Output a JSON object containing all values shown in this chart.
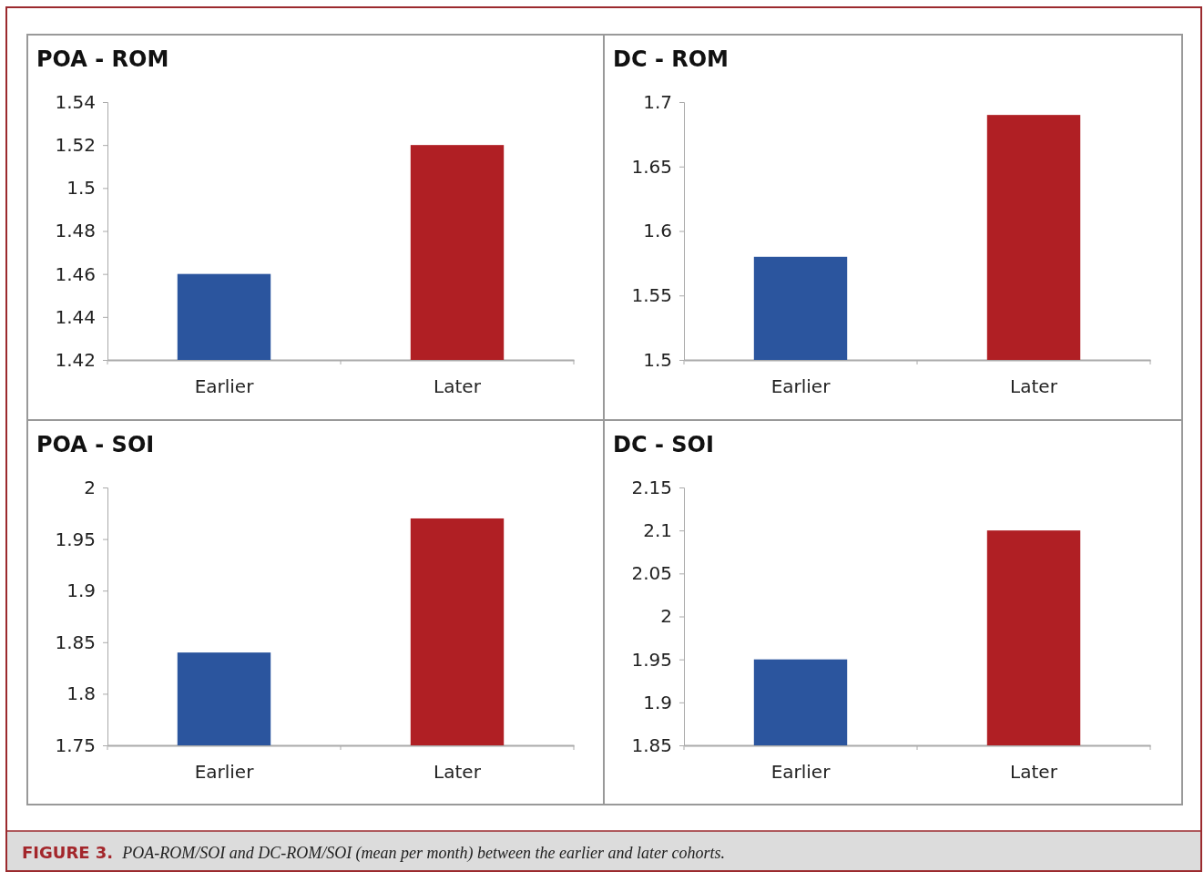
{
  "chart_data": [
    {
      "type": "bar",
      "title": "POA - ROM",
      "categories": [
        "Earlier",
        "Later"
      ],
      "values": [
        1.46,
        1.52
      ],
      "colors": [
        "#2b559e",
        "#b01f24"
      ],
      "ylim": [
        1.42,
        1.54
      ],
      "yticks": [
        1.42,
        1.44,
        1.46,
        1.48,
        1.5,
        1.52,
        1.54
      ]
    },
    {
      "type": "bar",
      "title": "DC - ROM",
      "categories": [
        "Earlier",
        "Later"
      ],
      "values": [
        1.58,
        1.69
      ],
      "colors": [
        "#2b559e",
        "#b01f24"
      ],
      "ylim": [
        1.5,
        1.7
      ],
      "yticks": [
        1.5,
        1.55,
        1.6,
        1.65,
        1.7
      ]
    },
    {
      "type": "bar",
      "title": "POA - SOI",
      "categories": [
        "Earlier",
        "Later"
      ],
      "values": [
        1.84,
        1.97
      ],
      "colors": [
        "#2b559e",
        "#b01f24"
      ],
      "ylim": [
        1.75,
        2
      ],
      "yticks": [
        1.75,
        1.8,
        1.85,
        1.9,
        1.95,
        2
      ]
    },
    {
      "type": "bar",
      "title": "DC - SOI",
      "categories": [
        "Earlier",
        "Later"
      ],
      "values": [
        1.95,
        2.1
      ],
      "colors": [
        "#2b559e",
        "#b01f24"
      ],
      "ylim": [
        1.85,
        2.15
      ],
      "yticks": [
        1.85,
        1.9,
        1.95,
        2,
        2.05,
        2.1,
        2.15
      ]
    },
    {
      "type": "other",
      "annotations": [
        "FIGURE 3.",
        "POA-ROM/SOI and DC-ROM/SOI (mean per month) between the earlier and later cohorts."
      ]
    }
  ]
}
